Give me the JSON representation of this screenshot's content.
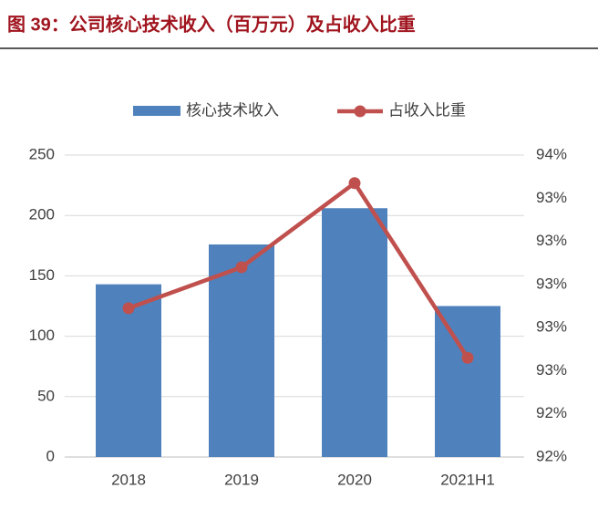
{
  "chart_data": {
    "type": "bar_line",
    "title": "图 39：公司核心技术收入（百万元）及占收入比重",
    "categories": [
      "2018",
      "2019",
      "2020",
      "2021H1"
    ],
    "series": [
      {
        "name": "核心技术收入",
        "color": "#4f81bd",
        "values": [
          143,
          176,
          206,
          125
        ]
      },
      {
        "name": "占收入比重",
        "color": "#c0504d",
        "axis": "y2",
        "values": [
          92.89,
          93.08,
          93.47,
          92.66
        ]
      }
    ],
    "ylim": [
      0,
      250
    ],
    "yticks": [
      0,
      50,
      100,
      150,
      200,
      250
    ],
    "y2lim": [
      92.2,
      93.6
    ],
    "y2ticks": [
      {
        "value": 92.2,
        "label": "92%"
      },
      {
        "value": 92.4,
        "label": "92%"
      },
      {
        "value": 92.6,
        "label": "93%"
      },
      {
        "value": 92.8,
        "label": "93%"
      },
      {
        "value": 93.0,
        "label": "93%"
      },
      {
        "value": 93.2,
        "label": "93%"
      },
      {
        "value": 93.4,
        "label": "93%"
      },
      {
        "value": 93.6,
        "label": "94%"
      }
    ],
    "grid": true,
    "legend": "top"
  }
}
